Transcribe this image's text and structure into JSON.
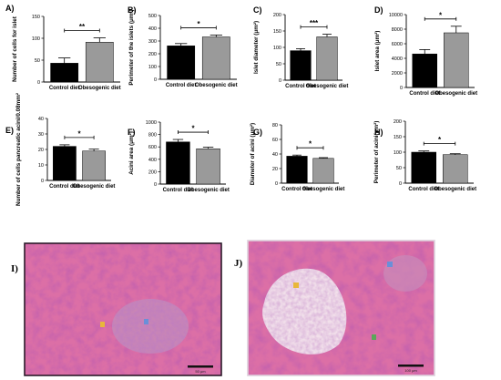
{
  "chart_data": [
    {
      "panel": "A)",
      "type": "bar",
      "categories": [
        "Control diet",
        "Obesogenic diet"
      ],
      "values": [
        43,
        91
      ],
      "errors": [
        12,
        10
      ],
      "ylabel": "Number of cells for islet",
      "ylim": [
        0,
        150
      ],
      "yticks": [
        0,
        50,
        100,
        150
      ],
      "significance": "**"
    },
    {
      "panel": "B)",
      "type": "bar",
      "categories": [
        "Control diet",
        "Obesogenic diet"
      ],
      "values": [
        262,
        332
      ],
      "errors": [
        18,
        15
      ],
      "ylabel": "Perimeter of the islets (μm²)",
      "ylim": [
        0,
        500
      ],
      "yticks": [
        0,
        100,
        200,
        300,
        400,
        500
      ],
      "significance": "*"
    },
    {
      "panel": "C)",
      "type": "bar",
      "categories": [
        "Control diet",
        "Obesogenic diet"
      ],
      "values": [
        90,
        132
      ],
      "errors": [
        6,
        8
      ],
      "ylabel": "Islet diameter (μm²)",
      "ylim": [
        0,
        200
      ],
      "yticks": [
        0,
        50,
        100,
        150,
        200
      ],
      "significance": "***"
    },
    {
      "panel": "D)",
      "type": "bar",
      "categories": [
        "Control diet",
        "Obesogenic diet"
      ],
      "values": [
        4600,
        7500
      ],
      "errors": [
        600,
        900
      ],
      "ylabel": "Islet area (μm²)",
      "ylim": [
        0,
        10000
      ],
      "yticks": [
        0,
        2000,
        4000,
        6000,
        8000,
        10000
      ],
      "significance": "*"
    },
    {
      "panel": "E)",
      "type": "bar",
      "categories": [
        "Control diet",
        "Obesogenic diet"
      ],
      "values": [
        22,
        19
      ],
      "errors": [
        1,
        1.2
      ],
      "ylabel": "Number of cells pancreatic acini/0.08mm²",
      "ylim": [
        0,
        40
      ],
      "yticks": [
        0,
        10,
        20,
        30,
        40
      ],
      "significance": "*"
    },
    {
      "panel": "F)",
      "type": "bar",
      "categories": [
        "Control diet",
        "Obesogenic diet"
      ],
      "values": [
        680,
        570
      ],
      "errors": [
        40,
        25
      ],
      "ylabel": "Acini area (μm²)",
      "ylim": [
        0,
        1000
      ],
      "yticks": [
        0,
        200,
        400,
        600,
        800,
        1000
      ],
      "significance": "*"
    },
    {
      "panel": "G)",
      "type": "bar",
      "categories": [
        "Control diet",
        "Obesogenic diet"
      ],
      "values": [
        37,
        34
      ],
      "errors": [
        1.5,
        1
      ],
      "ylabel": "Diameter of acini (μm²)",
      "ylim": [
        0,
        80
      ],
      "yticks": [
        0,
        20,
        40,
        60,
        80
      ],
      "significance": "*"
    },
    {
      "panel": "H)",
      "type": "bar",
      "categories": [
        "Control diet",
        "Obesogenic diet"
      ],
      "values": [
        100,
        92
      ],
      "errors": [
        4,
        3
      ],
      "ylabel": "Perimeter of acini(μm²)",
      "ylim": [
        0,
        200
      ],
      "yticks": [
        0,
        50,
        100,
        150,
        200
      ],
      "significance": "*"
    }
  ],
  "colors": {
    "control": "#000000",
    "obesogenic": "#9a9a9a",
    "stain_base": "#dc6fa6",
    "stain_dark": "#b0487f",
    "frame_I": "#2a1a2a",
    "frame_J": "#dcd0dc"
  },
  "micrographs": [
    {
      "label": "I)",
      "scale_bar": "50 μm",
      "markers": [
        {
          "color": "#e8b73a"
        },
        {
          "color": "#6a8fd8"
        }
      ]
    },
    {
      "label": "J)",
      "scale_bar": "100 μm",
      "markers": [
        {
          "color": "#e8b73a"
        },
        {
          "color": "#6a8fd8"
        },
        {
          "color": "#5aa65a"
        }
      ]
    }
  ]
}
